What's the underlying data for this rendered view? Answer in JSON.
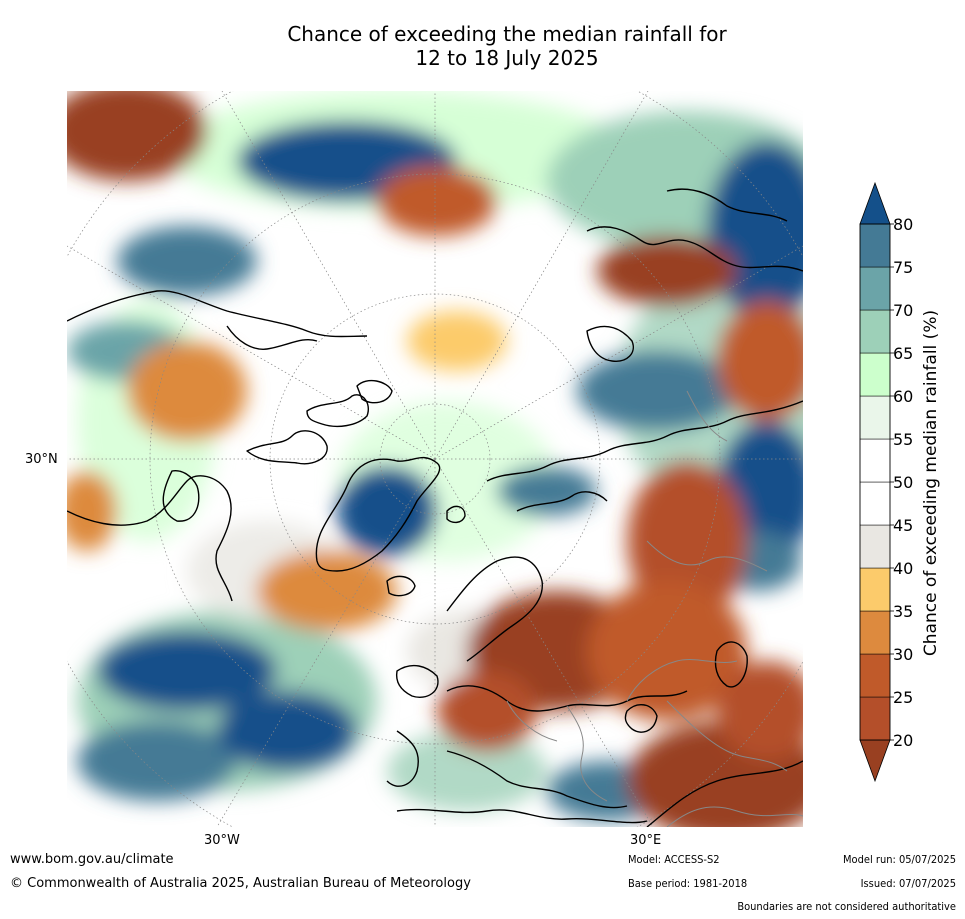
{
  "title": {
    "line1": "Chance of exceeding the median rainfall for",
    "line2": "12 to 18 July 2025"
  },
  "map": {
    "ticks": {
      "lat": "30°N",
      "lon_west": "30°W",
      "lon_east": "30°E"
    }
  },
  "colorbar": {
    "label": "Chance of exceeding median rainfall (%)",
    "ticks": [
      "80",
      "75",
      "70",
      "65",
      "60",
      "55",
      "50",
      "45",
      "40",
      "35",
      "30",
      "25",
      "20"
    ],
    "bins": [
      {
        "color": "#994021"
      },
      {
        "color": "#b44f2a"
      },
      {
        "color": "#c05a2a"
      },
      {
        "color": "#dd8a3e"
      },
      {
        "color": "#fccb6b"
      },
      {
        "color": "#e9e7e2"
      },
      {
        "color": "#ffffff"
      },
      {
        "color": "#ffffff"
      },
      {
        "color": "#eaf6ea"
      },
      {
        "color": "#ccffcc"
      },
      {
        "color": "#9dd0b8"
      },
      {
        "color": "#6ba4a8"
      },
      {
        "color": "#447a95"
      },
      {
        "color": "#14508a"
      }
    ]
  },
  "footer": {
    "website": "www.bom.gov.au/climate",
    "copyright": "© Commonwealth of Australia 2025, Australian Bureau of Meteorology",
    "model": "Model: ACCESS-S2",
    "base_period": "Base period: 1981-2018",
    "model_run": "Model run: 05/07/2025",
    "issued": "Issued: 07/07/2025",
    "disclaimer": "Boundaries are not considered authoritative"
  },
  "colors": {
    "dry_dark": "#994021",
    "dry": "#c05a2a",
    "dry_light": "#dd8a3e",
    "neutral": "#e9e7e2",
    "wet_light": "#ccffcc",
    "wet": "#6ba4a8",
    "wet_dark": "#14508a"
  }
}
